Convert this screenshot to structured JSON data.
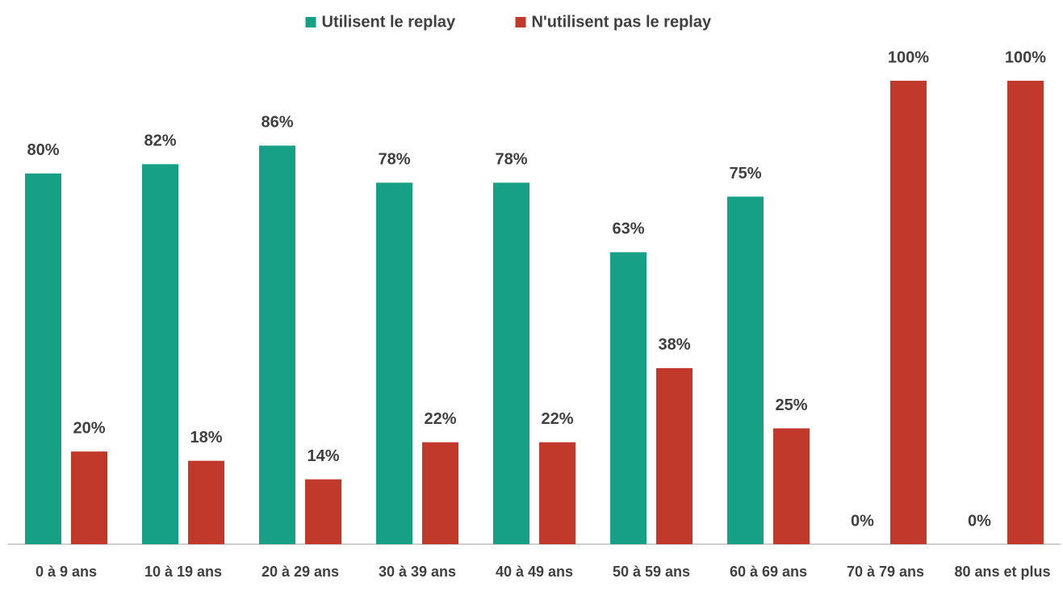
{
  "chart_data": {
    "type": "bar",
    "categories": [
      "0 à 9 ans",
      "10 à 19 ans",
      "20 à 29 ans",
      "30 à 39 ans",
      "40 à 49 ans",
      "50 à 59 ans",
      "60 à 69 ans",
      "70 à 79 ans",
      "80 ans et plus"
    ],
    "series": [
      {
        "name": "Utilisent le replay",
        "color": "#16a085",
        "values": [
          80,
          82,
          86,
          78,
          78,
          63,
          75,
          0,
          0
        ],
        "value_labels": [
          "80%",
          "82%",
          "86%",
          "78%",
          "78%",
          "63%",
          "75%",
          "0%",
          "0%"
        ]
      },
      {
        "name": "N'utilisent pas le replay",
        "color": "#c0392b",
        "values": [
          20,
          18,
          14,
          22,
          22,
          38,
          25,
          100,
          100
        ],
        "value_labels": [
          "20%",
          "18%",
          "14%",
          "22%",
          "22%",
          "38%",
          "25%",
          "100%",
          "100%"
        ]
      }
    ],
    "ylim": [
      0,
      100
    ],
    "legend": "top"
  }
}
